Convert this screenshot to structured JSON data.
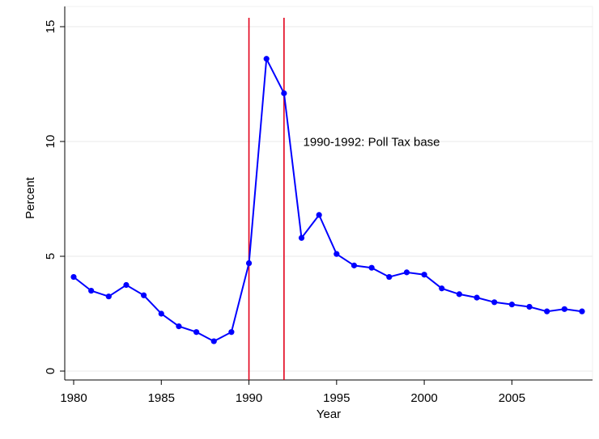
{
  "chart_data": {
    "type": "line",
    "title": "",
    "xlabel": "Year",
    "ylabel": "Percent",
    "xlim": [
      1980,
      2009
    ],
    "ylim": [
      0,
      15
    ],
    "x_ticks": [
      1980,
      1985,
      1990,
      1995,
      2000,
      2005
    ],
    "y_ticks": [
      0,
      5,
      10,
      15
    ],
    "grid": true,
    "series": [
      {
        "x": [
          1980,
          1981,
          1982,
          1983,
          1984,
          1985,
          1986,
          1987,
          1988,
          1989,
          1990,
          1991,
          1992,
          1993,
          1994,
          1995,
          1996,
          1997,
          1998,
          1999,
          2000,
          2001,
          2002,
          2003,
          2004,
          2005,
          2006,
          2007,
          2008,
          2009
        ],
        "y": [
          4.1,
          3.5,
          3.25,
          3.75,
          3.3,
          2.5,
          1.95,
          1.7,
          1.3,
          1.7,
          4.7,
          13.6,
          12.1,
          5.8,
          6.8,
          5.1,
          4.6,
          4.5,
          4.1,
          4.3,
          4.2,
          3.6,
          3.35,
          3.2,
          3.0,
          2.9,
          2.8,
          2.6,
          2.7,
          2.6
        ],
        "color": "#0000ff"
      }
    ],
    "vlines": [
      {
        "x": 1990,
        "color": "#e3001b"
      },
      {
        "x": 1992,
        "color": "#e3001b"
      }
    ],
    "annotations": [
      {
        "text": "1990-1992: Poll Tax base",
        "x": 1993,
        "y": 9.8
      }
    ]
  }
}
